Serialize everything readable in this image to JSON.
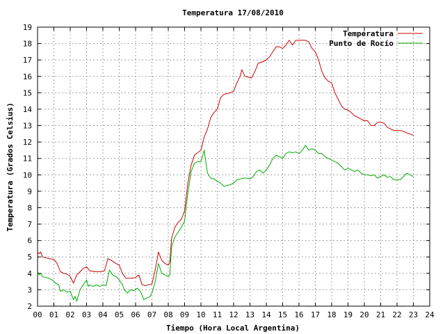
{
  "chart_data": {
    "type": "line",
    "title": "Temperatura 17/08/2010",
    "xlabel": "Tiempo (Hora Local Argentina)",
    "ylabel": "Temperatura (Grados Celsius)",
    "xlim": [
      0,
      24
    ],
    "ylim": [
      2,
      19
    ],
    "grid": true,
    "legend_position": "top-right",
    "x_ticks": [
      {
        "value": 0,
        "label": "00"
      },
      {
        "value": 1,
        "label": "01"
      },
      {
        "value": 2,
        "label": "02"
      },
      {
        "value": 3,
        "label": "03"
      },
      {
        "value": 4,
        "label": "04"
      },
      {
        "value": 5,
        "label": "05"
      },
      {
        "value": 6,
        "label": "06"
      },
      {
        "value": 7,
        "label": "07"
      },
      {
        "value": 8,
        "label": "08"
      },
      {
        "value": 9,
        "label": "09"
      },
      {
        "value": 10,
        "label": "10"
      },
      {
        "value": 11,
        "label": "11"
      },
      {
        "value": 12,
        "label": "12"
      },
      {
        "value": 13,
        "label": "13"
      },
      {
        "value": 14,
        "label": "14"
      },
      {
        "value": 15,
        "label": "15"
      },
      {
        "value": 16,
        "label": "16"
      },
      {
        "value": 17,
        "label": "17"
      },
      {
        "value": 18,
        "label": "18"
      },
      {
        "value": 19,
        "label": "19"
      },
      {
        "value": 20,
        "label": "20"
      },
      {
        "value": 21,
        "label": "21"
      },
      {
        "value": 22,
        "label": "22"
      },
      {
        "value": 23,
        "label": "23"
      },
      {
        "value": 24,
        "label": "24"
      }
    ],
    "y_ticks": [
      2,
      3,
      4,
      5,
      6,
      7,
      8,
      9,
      10,
      11,
      12,
      13,
      14,
      15,
      16,
      17,
      18,
      19
    ],
    "series": [
      {
        "name": "Temperatura",
        "color": "#cc0000",
        "points": [
          [
            0.0,
            5.3
          ],
          [
            0.1,
            5.2
          ],
          [
            0.2,
            5.3
          ],
          [
            0.3,
            5.0
          ],
          [
            0.5,
            4.95
          ],
          [
            0.7,
            4.9
          ],
          [
            1.0,
            4.85
          ],
          [
            1.2,
            4.6
          ],
          [
            1.4,
            4.1
          ],
          [
            1.6,
            4.0
          ],
          [
            1.8,
            3.95
          ],
          [
            2.0,
            3.8
          ],
          [
            2.2,
            3.4
          ],
          [
            2.4,
            3.9
          ],
          [
            2.6,
            4.1
          ],
          [
            2.8,
            4.3
          ],
          [
            3.0,
            4.4
          ],
          [
            3.2,
            4.15
          ],
          [
            3.5,
            4.1
          ],
          [
            3.8,
            4.1
          ],
          [
            4.1,
            4.15
          ],
          [
            4.3,
            4.9
          ],
          [
            4.5,
            4.8
          ],
          [
            4.8,
            4.6
          ],
          [
            5.0,
            4.5
          ],
          [
            5.2,
            4.0
          ],
          [
            5.4,
            3.7
          ],
          [
            5.6,
            3.7
          ],
          [
            5.8,
            3.7
          ],
          [
            6.0,
            3.75
          ],
          [
            6.2,
            3.9
          ],
          [
            6.4,
            3.3
          ],
          [
            6.6,
            3.25
          ],
          [
            6.8,
            3.3
          ],
          [
            7.0,
            3.35
          ],
          [
            7.2,
            4.2
          ],
          [
            7.4,
            5.3
          ],
          [
            7.6,
            4.8
          ],
          [
            7.8,
            4.6
          ],
          [
            8.0,
            4.5
          ],
          [
            8.1,
            4.7
          ],
          [
            8.2,
            6.1
          ],
          [
            8.4,
            6.8
          ],
          [
            8.6,
            7.1
          ],
          [
            8.8,
            7.3
          ],
          [
            9.0,
            7.8
          ],
          [
            9.2,
            9.5
          ],
          [
            9.4,
            10.6
          ],
          [
            9.6,
            11.2
          ],
          [
            9.8,
            11.35
          ],
          [
            10.0,
            11.5
          ],
          [
            10.2,
            12.3
          ],
          [
            10.4,
            12.8
          ],
          [
            10.6,
            13.5
          ],
          [
            10.8,
            13.8
          ],
          [
            11.0,
            14.0
          ],
          [
            11.2,
            14.7
          ],
          [
            11.4,
            14.9
          ],
          [
            11.6,
            14.95
          ],
          [
            11.8,
            15.0
          ],
          [
            12.0,
            15.1
          ],
          [
            12.2,
            15.6
          ],
          [
            12.4,
            16.0
          ],
          [
            12.5,
            16.4
          ],
          [
            12.7,
            16.0
          ],
          [
            12.9,
            15.95
          ],
          [
            13.1,
            15.9
          ],
          [
            13.3,
            16.3
          ],
          [
            13.5,
            16.8
          ],
          [
            13.8,
            16.9
          ],
          [
            14.0,
            17.0
          ],
          [
            14.2,
            17.2
          ],
          [
            14.4,
            17.5
          ],
          [
            14.6,
            17.8
          ],
          [
            14.8,
            17.8
          ],
          [
            15.0,
            17.7
          ],
          [
            15.2,
            17.9
          ],
          [
            15.4,
            18.2
          ],
          [
            15.6,
            17.9
          ],
          [
            15.8,
            18.2
          ],
          [
            16.0,
            18.2
          ],
          [
            16.2,
            18.2
          ],
          [
            16.4,
            18.2
          ],
          [
            16.6,
            18.1
          ],
          [
            16.8,
            17.7
          ],
          [
            17.0,
            17.5
          ],
          [
            17.2,
            17.0
          ],
          [
            17.4,
            16.3
          ],
          [
            17.6,
            15.9
          ],
          [
            17.8,
            15.7
          ],
          [
            18.0,
            15.6
          ],
          [
            18.2,
            15.0
          ],
          [
            18.4,
            14.6
          ],
          [
            18.6,
            14.2
          ],
          [
            18.8,
            14.0
          ],
          [
            19.0,
            13.95
          ],
          [
            19.2,
            13.8
          ],
          [
            19.4,
            13.6
          ],
          [
            19.6,
            13.5
          ],
          [
            19.8,
            13.4
          ],
          [
            20.0,
            13.3
          ],
          [
            20.2,
            13.3
          ],
          [
            20.4,
            13.0
          ],
          [
            20.6,
            13.0
          ],
          [
            20.8,
            13.2
          ],
          [
            21.0,
            13.2
          ],
          [
            21.2,
            13.15
          ],
          [
            21.4,
            12.9
          ],
          [
            21.6,
            12.8
          ],
          [
            21.8,
            12.7
          ],
          [
            22.0,
            12.7
          ],
          [
            22.2,
            12.7
          ],
          [
            22.4,
            12.65
          ],
          [
            22.6,
            12.55
          ],
          [
            22.8,
            12.5
          ],
          [
            23.0,
            12.4
          ]
        ]
      },
      {
        "name": "Punto de Rocío",
        "color": "#00aa00",
        "points": [
          [
            0.0,
            4.1
          ],
          [
            0.1,
            3.9
          ],
          [
            0.2,
            4.0
          ],
          [
            0.3,
            3.8
          ],
          [
            0.5,
            3.75
          ],
          [
            0.7,
            3.7
          ],
          [
            0.9,
            3.6
          ],
          [
            1.1,
            3.4
          ],
          [
            1.3,
            3.3
          ],
          [
            1.4,
            2.9
          ],
          [
            1.6,
            3.0
          ],
          [
            1.8,
            2.85
          ],
          [
            2.0,
            2.9
          ],
          [
            2.2,
            2.4
          ],
          [
            2.3,
            2.6
          ],
          [
            2.4,
            2.3
          ],
          [
            2.6,
            3.0
          ],
          [
            2.8,
            3.3
          ],
          [
            3.0,
            3.6
          ],
          [
            3.1,
            3.2
          ],
          [
            3.2,
            3.3
          ],
          [
            3.4,
            3.2
          ],
          [
            3.6,
            3.3
          ],
          [
            3.8,
            3.2
          ],
          [
            4.0,
            3.3
          ],
          [
            4.2,
            3.25
          ],
          [
            4.4,
            4.2
          ],
          [
            4.6,
            3.9
          ],
          [
            4.8,
            3.8
          ],
          [
            5.0,
            3.6
          ],
          [
            5.2,
            3.3
          ],
          [
            5.3,
            3.0
          ],
          [
            5.5,
            2.8
          ],
          [
            5.7,
            3.0
          ],
          [
            5.9,
            2.95
          ],
          [
            6.1,
            3.1
          ],
          [
            6.3,
            2.9
          ],
          [
            6.5,
            2.4
          ],
          [
            6.7,
            2.5
          ],
          [
            6.9,
            2.6
          ],
          [
            7.0,
            2.8
          ],
          [
            7.2,
            3.5
          ],
          [
            7.4,
            4.6
          ],
          [
            7.6,
            4.0
          ],
          [
            7.8,
            3.9
          ],
          [
            8.0,
            3.8
          ],
          [
            8.1,
            3.9
          ],
          [
            8.2,
            5.6
          ],
          [
            8.4,
            6.2
          ],
          [
            8.6,
            6.5
          ],
          [
            8.8,
            6.8
          ],
          [
            9.0,
            7.2
          ],
          [
            9.2,
            8.9
          ],
          [
            9.4,
            10.2
          ],
          [
            9.6,
            10.7
          ],
          [
            9.8,
            10.8
          ],
          [
            10.0,
            10.8
          ],
          [
            10.2,
            11.5
          ],
          [
            10.4,
            10.1
          ],
          [
            10.6,
            9.8
          ],
          [
            10.8,
            9.75
          ],
          [
            11.0,
            9.6
          ],
          [
            11.2,
            9.5
          ],
          [
            11.4,
            9.3
          ],
          [
            11.6,
            9.35
          ],
          [
            11.8,
            9.4
          ],
          [
            12.0,
            9.5
          ],
          [
            12.2,
            9.7
          ],
          [
            12.4,
            9.75
          ],
          [
            12.6,
            9.8
          ],
          [
            12.8,
            9.8
          ],
          [
            13.0,
            9.75
          ],
          [
            13.2,
            9.9
          ],
          [
            13.4,
            10.2
          ],
          [
            13.6,
            10.3
          ],
          [
            13.8,
            10.1
          ],
          [
            14.0,
            10.3
          ],
          [
            14.2,
            10.6
          ],
          [
            14.4,
            11.0
          ],
          [
            14.6,
            11.2
          ],
          [
            14.8,
            11.1
          ],
          [
            15.0,
            11.0
          ],
          [
            15.2,
            11.3
          ],
          [
            15.4,
            11.4
          ],
          [
            15.6,
            11.35
          ],
          [
            15.8,
            11.4
          ],
          [
            16.0,
            11.3
          ],
          [
            16.2,
            11.5
          ],
          [
            16.4,
            11.8
          ],
          [
            16.6,
            11.5
          ],
          [
            16.8,
            11.6
          ],
          [
            17.0,
            11.5
          ],
          [
            17.2,
            11.3
          ],
          [
            17.4,
            11.3
          ],
          [
            17.6,
            11.1
          ],
          [
            17.8,
            11.0
          ],
          [
            18.0,
            10.9
          ],
          [
            18.2,
            10.8
          ],
          [
            18.4,
            10.7
          ],
          [
            18.6,
            10.5
          ],
          [
            18.8,
            10.3
          ],
          [
            19.0,
            10.4
          ],
          [
            19.2,
            10.3
          ],
          [
            19.4,
            10.2
          ],
          [
            19.6,
            10.3
          ],
          [
            19.8,
            10.1
          ],
          [
            20.0,
            10.0
          ],
          [
            20.2,
            10.0
          ],
          [
            20.4,
            9.95
          ],
          [
            20.6,
            10.0
          ],
          [
            20.8,
            9.8
          ],
          [
            21.0,
            9.9
          ],
          [
            21.2,
            10.0
          ],
          [
            21.4,
            9.85
          ],
          [
            21.6,
            9.9
          ],
          [
            21.8,
            9.7
          ],
          [
            22.0,
            9.7
          ],
          [
            22.2,
            9.7
          ],
          [
            22.4,
            9.9
          ],
          [
            22.6,
            10.1
          ],
          [
            22.8,
            10.0
          ],
          [
            23.0,
            9.9
          ]
        ]
      }
    ]
  }
}
